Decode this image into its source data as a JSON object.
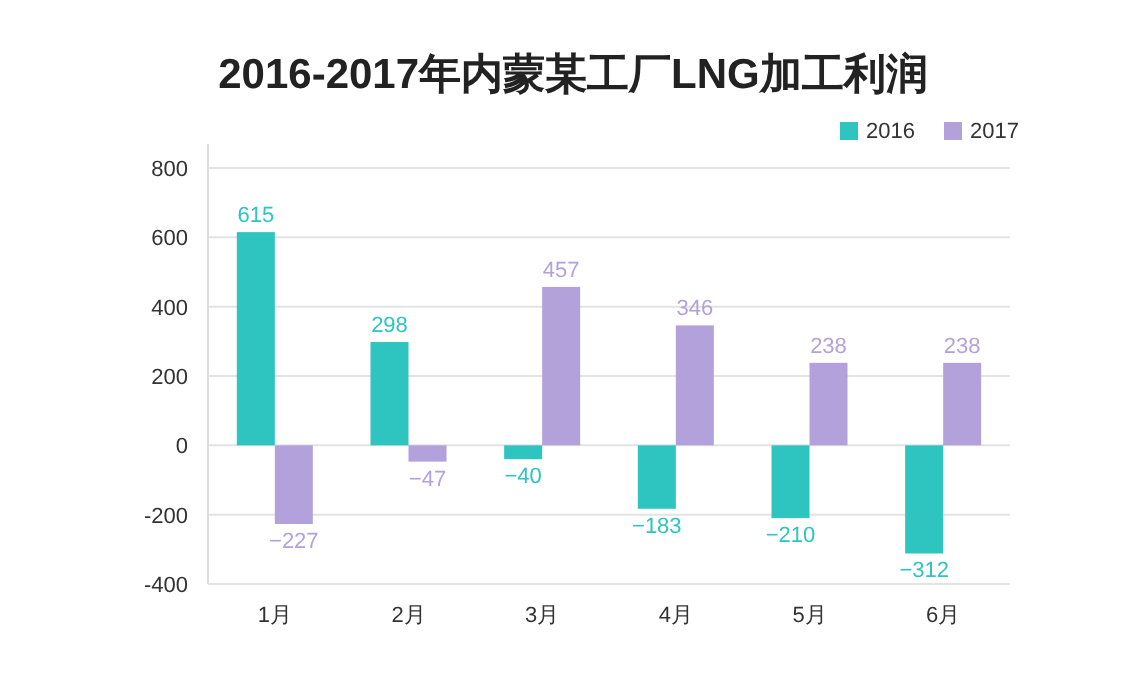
{
  "chart_data": {
    "type": "bar",
    "title": "2016-2017年内蒙某工厂LNG加工利润",
    "categories": [
      "1月",
      "2月",
      "3月",
      "4月",
      "5月",
      "6月"
    ],
    "series": [
      {
        "name": "2016",
        "color": "#2ec4c0",
        "values": [
          615,
          298,
          -40,
          -183,
          -210,
          -312
        ],
        "value_labels": [
          "615",
          "298",
          "−40",
          "−183",
          "−210",
          "−312"
        ]
      },
      {
        "name": "2017",
        "color": "#b3a1db",
        "values": [
          -227,
          -47,
          457,
          346,
          238,
          238
        ],
        "value_labels": [
          "−227",
          "−47",
          "457",
          "346",
          "238",
          "238"
        ]
      }
    ],
    "ylim": [
      -400,
      800
    ],
    "yticks": [
      -400,
      -200,
      0,
      200,
      400,
      600,
      800
    ],
    "grid": "y",
    "legend": "top right"
  }
}
